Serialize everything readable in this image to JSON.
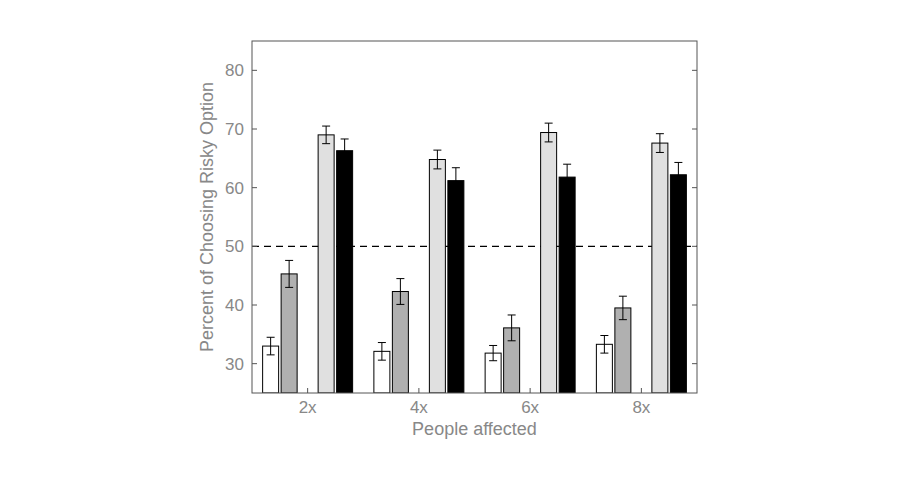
{
  "chart_data": {
    "type": "bar",
    "x_label": "People affected",
    "y_label": "Percent of Choosing Risky Option",
    "categories": [
      "2x",
      "4x",
      "6x",
      "8x"
    ],
    "series": [
      {
        "color": "#ffffff",
        "values": [
          33.0,
          32.1,
          31.8,
          33.3
        ],
        "errors": [
          1.5,
          1.5,
          1.3,
          1.5
        ]
      },
      {
        "color": "#b0b0b0",
        "values": [
          45.3,
          42.3,
          36.1,
          39.5
        ],
        "errors": [
          2.3,
          2.2,
          2.2,
          2.0
        ]
      },
      {
        "color": "#e0e0e0",
        "values": [
          69.0,
          64.8,
          69.4,
          67.6
        ],
        "errors": [
          1.5,
          1.6,
          1.6,
          1.6
        ]
      },
      {
        "color": "#000000",
        "values": [
          66.3,
          61.2,
          61.8,
          62.2
        ],
        "errors": [
          2.0,
          2.2,
          2.2,
          2.1
        ]
      }
    ],
    "reference_line": 50,
    "ylim": [
      25,
      85
    ],
    "yticks": [
      30,
      40,
      50,
      60,
      70,
      80
    ],
    "grid": false
  }
}
